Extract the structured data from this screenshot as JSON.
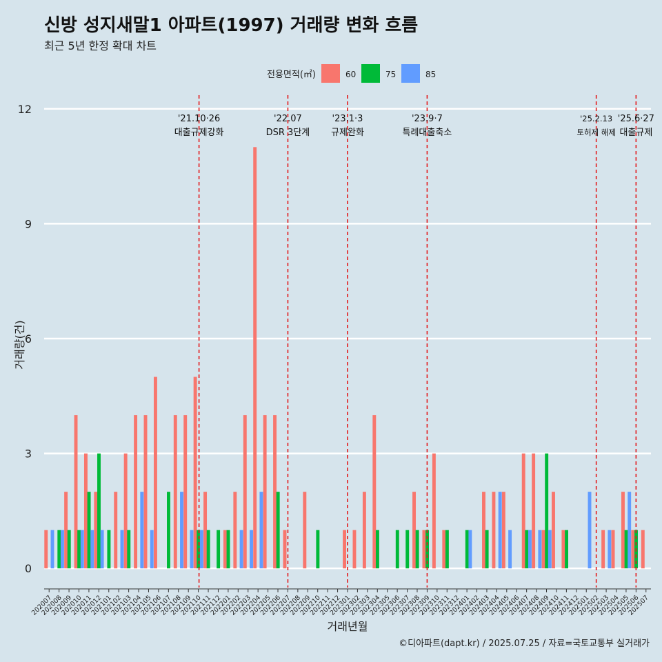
{
  "title": "신방 성지새말1 아파트(1997) 거래량 변화 흐름",
  "subtitle": "최근 5년 한정 확대 차트",
  "caption": "©디아파트(dapt.kr) / 2025.07.25 / 자료=국토교통부 실거래가",
  "chart_data": {
    "type": "bar",
    "xlabel": "거래년월",
    "ylabel": "거래량(건)",
    "ylim": [
      -0.5,
      12.5
    ],
    "yticks": [
      0,
      3,
      6,
      9,
      12
    ],
    "grid": true,
    "legend": {
      "title": "전용면적(㎡)",
      "position": "top"
    },
    "categories": [
      "202007",
      "202008",
      "202009",
      "202010",
      "202011",
      "202012",
      "202101",
      "202102",
      "202103",
      "202104",
      "202105",
      "202106",
      "202107",
      "202108",
      "202109",
      "202110",
      "202111",
      "202112",
      "202201",
      "202202",
      "202203",
      "202204",
      "202205",
      "202206",
      "202207",
      "202208",
      "202209",
      "202210",
      "202211",
      "202212",
      "202301",
      "202302",
      "202303",
      "202304",
      "202305",
      "202306",
      "202307",
      "202308",
      "202309",
      "202310",
      "202311",
      "202312",
      "202401",
      "202402",
      "202403",
      "202404",
      "202405",
      "202406",
      "202407",
      "202408",
      "202409",
      "202410",
      "202411",
      "202412",
      "202501",
      "202502",
      "202503",
      "202504",
      "202505",
      "202506",
      "202507"
    ],
    "series": [
      {
        "name": "60",
        "color": "#f8766d",
        "values": [
          1,
          0,
          2,
          4,
          3,
          2,
          0,
          2,
          3,
          4,
          4,
          5,
          0,
          4,
          4,
          5,
          2,
          0,
          1,
          2,
          4,
          11,
          4,
          4,
          1,
          0,
          2,
          0,
          0,
          0,
          1,
          1,
          2,
          4,
          0,
          0,
          0,
          2,
          1,
          3,
          1,
          0,
          0,
          0,
          2,
          2,
          2,
          0,
          3,
          3,
          1,
          2,
          1,
          0,
          0,
          0,
          1,
          1,
          2,
          1,
          1
        ]
      },
      {
        "name": "75",
        "color": "#00ba38",
        "values": [
          0,
          1,
          1,
          1,
          2,
          3,
          1,
          0,
          1,
          0,
          0,
          0,
          2,
          0,
          0,
          1,
          1,
          1,
          1,
          0,
          0,
          0,
          0,
          2,
          0,
          0,
          0,
          1,
          0,
          0,
          0,
          0,
          0,
          1,
          0,
          1,
          1,
          1,
          1,
          0,
          1,
          0,
          1,
          0,
          1,
          0,
          0,
          0,
          1,
          0,
          3,
          0,
          1,
          0,
          0,
          0,
          0,
          0,
          1,
          1,
          0
        ]
      },
      {
        "name": "85",
        "color": "#619cff",
        "values": [
          1,
          1,
          0,
          1,
          1,
          1,
          0,
          1,
          0,
          2,
          1,
          0,
          0,
          2,
          1,
          1,
          0,
          0,
          0,
          1,
          1,
          2,
          0,
          0,
          0,
          0,
          0,
          0,
          0,
          0,
          0,
          0,
          0,
          0,
          0,
          0,
          0,
          0,
          0,
          0,
          0,
          0,
          1,
          0,
          0,
          2,
          1,
          0,
          1,
          1,
          1,
          0,
          0,
          0,
          2,
          0,
          1,
          0,
          2,
          0,
          0
        ]
      }
    ],
    "events": [
      {
        "category": "202110",
        "date": "'21.10·26",
        "label": "대출규제강화"
      },
      {
        "category": "202207",
        "date": "'22.07",
        "label": "DSR 3단계"
      },
      {
        "category": "202301",
        "date": "'23.1·3",
        "label": "규제완화"
      },
      {
        "category": "202309",
        "date": "'23.9·7",
        "label": "특례대출축소"
      },
      {
        "category": "202502",
        "date": "'25.2.13",
        "label": "토허제 해제"
      },
      {
        "category": "202506",
        "date": "'25.6·27",
        "label": "대출규제"
      }
    ]
  }
}
